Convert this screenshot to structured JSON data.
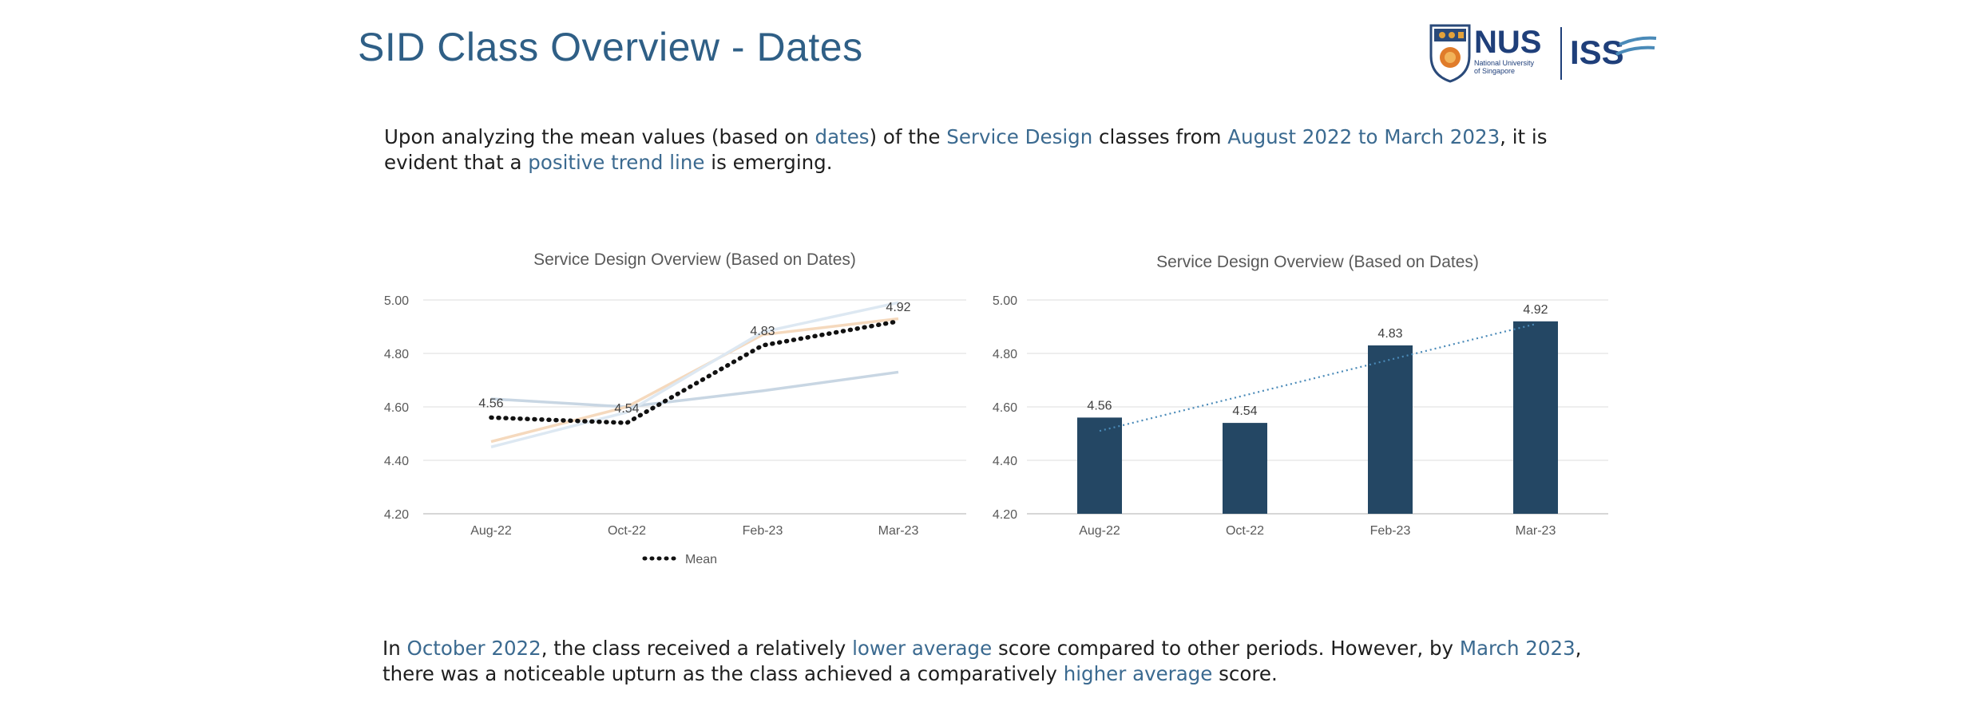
{
  "slide": {
    "title": "SID Class Overview - Dates"
  },
  "logo": {
    "primary_text": "NUS",
    "subtitle_line1": "National University",
    "subtitle_line2": "of Singapore",
    "secondary_text": "ISS",
    "crest_icon": "nus-crest-icon"
  },
  "intro": {
    "t1": "Upon analyzing the mean values (based on ",
    "h1": "dates",
    "t2": ") of the ",
    "h2": "Service Design",
    "t3": " classes from ",
    "h3": "August 2022 to March 2023",
    "t4": ", it is evident that a ",
    "h4": "positive trend line",
    "t5": " is emerging."
  },
  "conclusion": {
    "t1": "In ",
    "h1": "October 2022",
    "t2": ", the class received a relatively ",
    "h2": "lower average",
    "t3": " score compared to other periods. However, by ",
    "h3": "March 2023",
    "t4": ", there was a noticeable upturn as the class achieved a comparatively ",
    "h4": "higher average",
    "t5": " score."
  },
  "colors": {
    "title": "#2f5f86",
    "highlight": "#3b6a90",
    "bar": "#244764",
    "mean_line": "#111111",
    "trendline": "#4a8ab8",
    "faint_blue": "#c8d6e3",
    "faint_orange": "#f5d9bd",
    "faint_light": "#dde8f2"
  },
  "chart_data": [
    {
      "type": "line",
      "title": "Service Design Overview (Based on Dates)",
      "categories": [
        "Aug-22",
        "Oct-22",
        "Feb-23",
        "Mar-23"
      ],
      "ylim": [
        4.2,
        5.0
      ],
      "yticks": [
        "4.20",
        "4.40",
        "4.60",
        "4.80",
        "5.00"
      ],
      "grid": true,
      "legend": "bottom",
      "series": [
        {
          "name": "Mean",
          "values": [
            4.56,
            4.54,
            4.83,
            4.92
          ],
          "labels": [
            "4.56",
            "4.54",
            "4.83",
            "4.92"
          ],
          "style": "dotted-black"
        },
        {
          "values": [
            4.63,
            4.6,
            4.66,
            4.73
          ],
          "style": "faint-blue"
        },
        {
          "values": [
            4.47,
            4.6,
            4.87,
            4.93
          ],
          "style": "faint-orange"
        },
        {
          "values": [
            4.45,
            4.58,
            4.88,
            4.99
          ],
          "style": "faint-light"
        }
      ]
    },
    {
      "type": "bar",
      "title": "Service Design Overview (Based on Dates)",
      "categories": [
        "Aug-22",
        "Oct-22",
        "Feb-23",
        "Mar-23"
      ],
      "values": [
        4.56,
        4.54,
        4.83,
        4.92
      ],
      "labels": [
        "4.56",
        "4.54",
        "4.83",
        "4.92"
      ],
      "ylim": [
        4.2,
        5.0
      ],
      "yticks": [
        "4.20",
        "4.40",
        "4.60",
        "4.80",
        "5.00"
      ],
      "grid": true,
      "trendline": {
        "type": "linear",
        "style": "dotted",
        "start": 4.51,
        "end": 4.91
      }
    }
  ]
}
